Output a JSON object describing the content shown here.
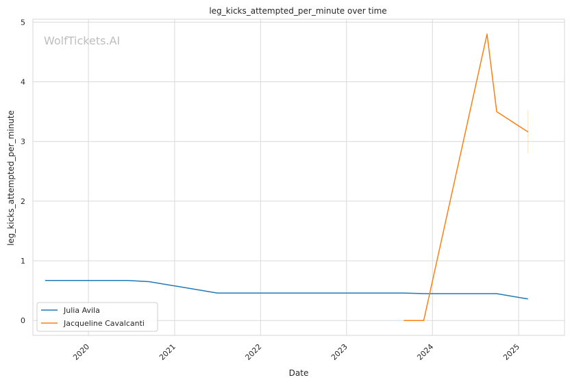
{
  "chart_data": {
    "type": "line",
    "title": "leg_kicks_attempted_per_minute over time",
    "xlabel": "Date",
    "ylabel": "leg_kicks_attempted_per_minute",
    "watermark": "WolfTickets.AI",
    "x_ticks": [
      "2020",
      "2021",
      "2022",
      "2023",
      "2024",
      "2025"
    ],
    "y_ticks": [
      "0",
      "1",
      "2",
      "3",
      "4",
      "5"
    ],
    "xlim": [
      "2019-05-10",
      "2025-07-15"
    ],
    "ylim": [
      -0.25,
      5.05
    ],
    "grid": true,
    "legend_position": "lower-left",
    "series": [
      {
        "name": "Julia Avila",
        "color": "#1f77b4",
        "points": [
          [
            "2019-07-01",
            0.67
          ],
          [
            "2020-06-15",
            0.67
          ],
          [
            "2020-09-15",
            0.65
          ],
          [
            "2021-07-01",
            0.46
          ],
          [
            "2023-09-01",
            0.46
          ],
          [
            "2023-11-30",
            0.45
          ],
          [
            "2024-09-30",
            0.45
          ],
          [
            "2025-02-10",
            0.36
          ]
        ]
      },
      {
        "name": "Jacqueline Cavalcanti",
        "color": "#ff7f0e",
        "points": [
          [
            "2023-09-01",
            0.0
          ],
          [
            "2023-11-25",
            0.0
          ],
          [
            "2024-08-20",
            4.8
          ],
          [
            "2024-09-30",
            3.5
          ],
          [
            "2025-02-10",
            3.16
          ]
        ]
      }
    ]
  }
}
